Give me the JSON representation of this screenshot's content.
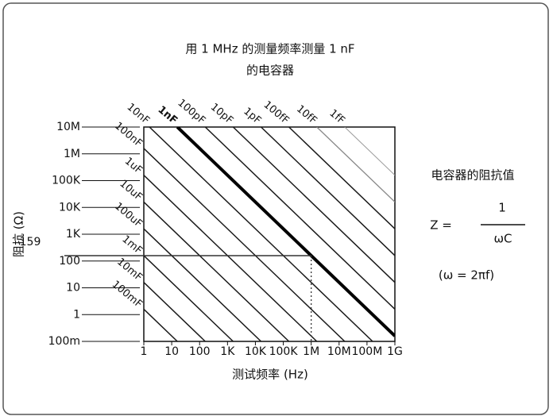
{
  "chart_data": {
    "type": "capacitor-impedance",
    "title": "用 1 MHz 的测量频率测量 1 nF",
    "subtitle": "的电容器",
    "x_label": "测试频率 (Hz)",
    "y_label": "阻抗 (Ω)",
    "xscale": "log",
    "yscale": "log",
    "xlim": [
      1,
      1000000000
    ],
    "ylim": [
      0.1,
      10000000
    ],
    "xticks": [
      1,
      10,
      100,
      {
        "value": 1000,
        "label": "1K"
      },
      {
        "value": 10000,
        "label": "10K"
      },
      {
        "value": 100000,
        "label": "100K"
      },
      {
        "value": 1000000,
        "label": "1M"
      },
      {
        "value": 10000000,
        "label": "10M"
      },
      {
        "value": 100000000,
        "label": "100M"
      },
      {
        "value": 1000000000,
        "label": "1G"
      }
    ],
    "yticks": [
      {
        "value": 0.1,
        "label": "100m"
      },
      1,
      10,
      100,
      {
        "value": 1000,
        "label": "1K"
      },
      {
        "value": 10000,
        "label": "10K"
      },
      {
        "value": 100000,
        "label": "100K"
      },
      {
        "value": 1000000,
        "label": "1M"
      },
      {
        "value": 10000000,
        "label": "10M"
      }
    ],
    "series": [
      {
        "name": "1fF",
        "capacitance": 1e-15,
        "color": "#999999",
        "width": 1
      },
      {
        "name": "10fF",
        "capacitance": 1e-14,
        "color": "#888888",
        "width": 1.3
      },
      {
        "name": "100fF",
        "capacitance": 1e-13,
        "color": "#1a1a1a",
        "width": 1.5
      },
      {
        "name": "1pF",
        "capacitance": 1e-12,
        "color": "#1a1a1a",
        "width": 1.5
      },
      {
        "name": "10pF",
        "capacitance": 1e-11,
        "color": "#1a1a1a",
        "width": 1.5
      },
      {
        "name": "100pF",
        "capacitance": 1e-10,
        "color": "#1a1a1a",
        "width": 1.5
      },
      {
        "name": "1nF",
        "capacitance": 1e-09,
        "color": "#000000",
        "width": 4
      },
      {
        "name": "10nF",
        "capacitance": 1e-08,
        "color": "#1a1a1a",
        "width": 1.5
      },
      {
        "name": "100nF",
        "capacitance": 1e-07,
        "color": "#1a1a1a",
        "width": 1.5
      },
      {
        "name": "1uF",
        "capacitance": 1e-06,
        "color": "#1a1a1a",
        "width": 1.5
      },
      {
        "name": "10uF",
        "capacitance": 1e-05,
        "color": "#1a1a1a",
        "width": 1.5
      },
      {
        "name": "100uF",
        "capacitance": 0.0001,
        "color": "#1a1a1a",
        "width": 1.5
      },
      {
        "name": "1mF",
        "capacitance": 0.001,
        "color": "#1a1a1a",
        "width": 1.5
      },
      {
        "name": "10mF",
        "capacitance": 0.01,
        "color": "#1a1a1a",
        "width": 1.5
      },
      {
        "name": "100mF",
        "capacitance": 0.1,
        "color": "#1a1a1a",
        "width": 1.5
      }
    ],
    "marker": {
      "x": 1000000,
      "y": 159
    },
    "formula": {
      "heading": "电容器的阻抗值",
      "lhs": "Z =",
      "numerator": "1",
      "denominator": "ωC",
      "note": "(ω = 2πf)"
    }
  }
}
